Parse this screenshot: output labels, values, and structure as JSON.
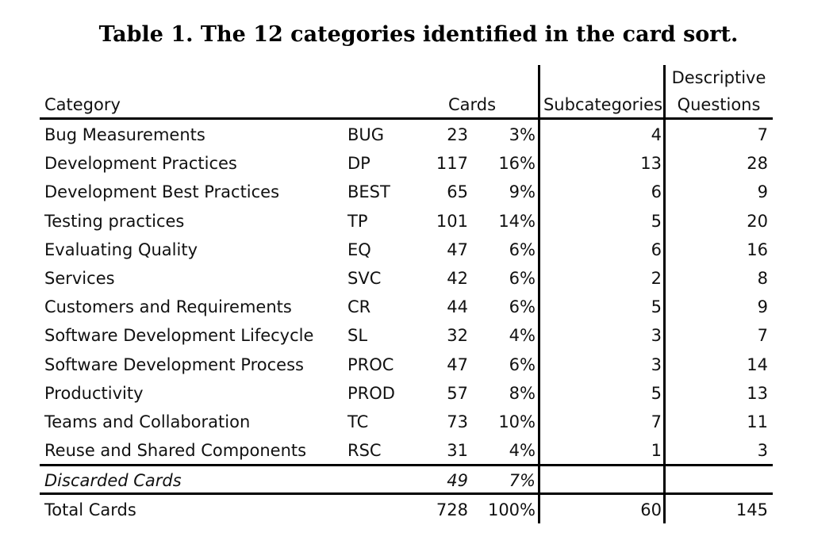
{
  "title": "Table 1. The 12 categories identified in the card sort.",
  "headers": {
    "category": "Category",
    "cards": "Cards",
    "subcategories": "Subcategories",
    "descriptive_line1": "Descriptive",
    "descriptive_line2": "Questions"
  },
  "rows": [
    {
      "category": "Bug Measurements",
      "code": "BUG",
      "cards": "23",
      "percent": "3%",
      "subcategories": "4",
      "questions": "7"
    },
    {
      "category": "Development Practices",
      "code": "DP",
      "cards": "117",
      "percent": "16%",
      "subcategories": "13",
      "questions": "28"
    },
    {
      "category": "Development Best Practices",
      "code": "BEST",
      "cards": "65",
      "percent": "9%",
      "subcategories": "6",
      "questions": "9"
    },
    {
      "category": "Testing practices",
      "code": "TP",
      "cards": "101",
      "percent": "14%",
      "subcategories": "5",
      "questions": "20"
    },
    {
      "category": "Evaluating Quality",
      "code": "EQ",
      "cards": "47",
      "percent": "6%",
      "subcategories": "6",
      "questions": "16"
    },
    {
      "category": "Services",
      "code": "SVC",
      "cards": "42",
      "percent": "6%",
      "subcategories": "2",
      "questions": "8"
    },
    {
      "category": "Customers and Requirements",
      "code": "CR",
      "cards": "44",
      "percent": "6%",
      "subcategories": "5",
      "questions": "9"
    },
    {
      "category": "Software Development Lifecycle",
      "code": "SL",
      "cards": "32",
      "percent": "4%",
      "subcategories": "3",
      "questions": "7"
    },
    {
      "category": "Software Development Process",
      "code": "PROC",
      "cards": "47",
      "percent": "6%",
      "subcategories": "3",
      "questions": "14"
    },
    {
      "category": "Productivity",
      "code": "PROD",
      "cards": "57",
      "percent": "8%",
      "subcategories": "5",
      "questions": "13"
    },
    {
      "category": "Teams and Collaboration",
      "code": "TC",
      "cards": "73",
      "percent": "10%",
      "subcategories": "7",
      "questions": "11"
    },
    {
      "category": "Reuse and Shared Components",
      "code": "RSC",
      "cards": "31",
      "percent": "4%",
      "subcategories": "1",
      "questions": "3"
    }
  ],
  "discarded": {
    "category": "Discarded Cards",
    "cards": "49",
    "percent": "7%"
  },
  "total": {
    "category": "Total Cards",
    "cards": "728",
    "percent": "100%",
    "subcategories": "60",
    "questions": "145"
  }
}
